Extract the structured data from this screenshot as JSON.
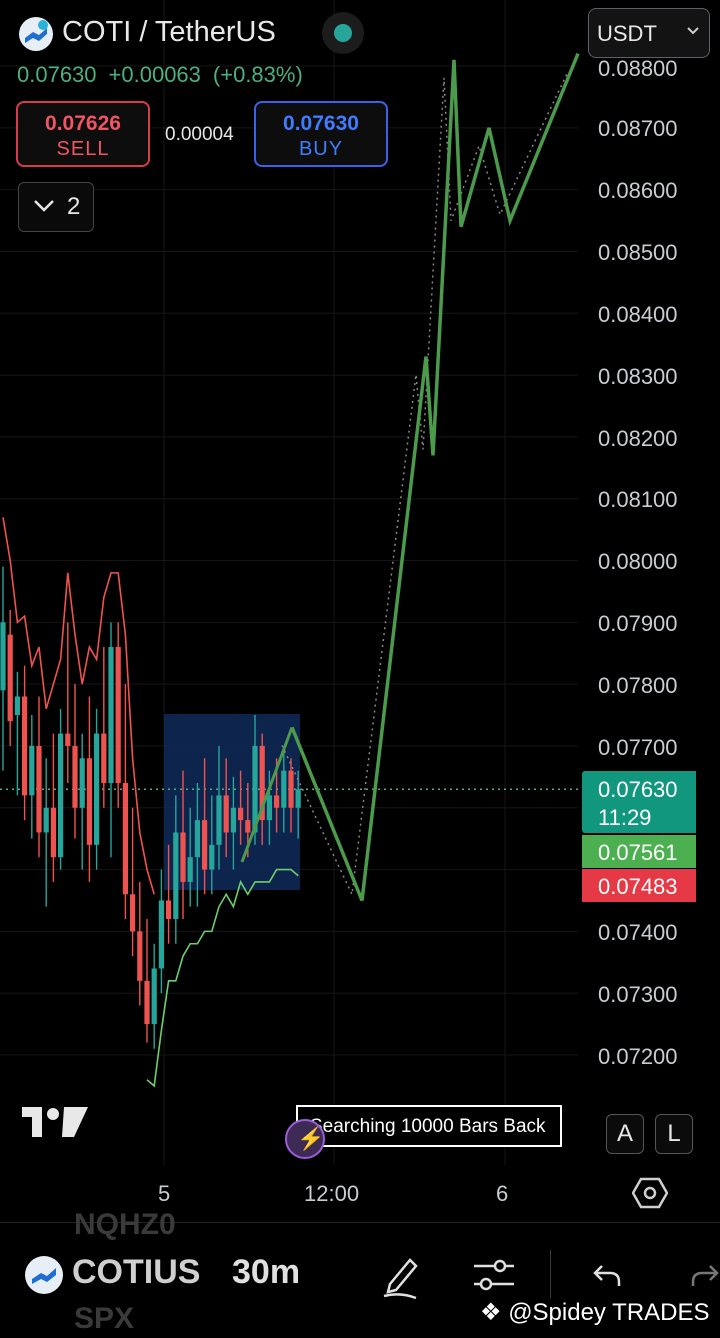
{
  "header": {
    "title": "COTI / TetherUS",
    "last_price": "0.07630",
    "change": "+0.00063",
    "change_pct": "(+0.83%)",
    "currency_selector": "USDT"
  },
  "trade": {
    "sell_price": "0.07626",
    "sell_label": "SELL",
    "spread": "0.00004",
    "buy_price": "0.07630",
    "buy_label": "BUY"
  },
  "indicators_toggle": {
    "count": "2"
  },
  "price_axis": {
    "labels": [
      "0.08800",
      "0.08700",
      "0.08600",
      "0.08500",
      "0.08400",
      "0.08300",
      "0.08200",
      "0.08100",
      "0.08000",
      "0.07900",
      "0.07800",
      "0.07700",
      "0.07400",
      "0.07300",
      "0.07200"
    ],
    "current_price_tag": "0.07630",
    "countdown": "11:29",
    "green_tag": "0.07561",
    "red_tag": "0.07483"
  },
  "time_axis": {
    "labels": [
      "5",
      "12:00",
      "6"
    ]
  },
  "overlay": {
    "search_message": "Searching 10000 Bars Back"
  },
  "scale_buttons": {
    "auto": "A",
    "log": "L"
  },
  "toolbar": {
    "symbol": "COTIUS",
    "interval": "30m",
    "ghost_top": "NQHZ0",
    "ghost_bottom": "SPX"
  },
  "watermark": "@Spidey TRADES",
  "colors": {
    "up": "#26a69a",
    "down": "#ef5350",
    "projection": "#4c9a4c",
    "sell": "#f05563",
    "buy": "#3f7cff"
  },
  "chart_data": {
    "type": "candlestick",
    "y_range": [
      0.0715,
      0.0882
    ],
    "grid": true,
    "candles": [
      {
        "o": 0.0779,
        "h": 0.0799,
        "l": 0.0766,
        "c": 0.079
      },
      {
        "o": 0.0788,
        "h": 0.0792,
        "l": 0.077,
        "c": 0.0774
      },
      {
        "o": 0.0775,
        "h": 0.0782,
        "l": 0.0762,
        "c": 0.0778
      },
      {
        "o": 0.0778,
        "h": 0.0783,
        "l": 0.0758,
        "c": 0.0762
      },
      {
        "o": 0.0762,
        "h": 0.0775,
        "l": 0.0755,
        "c": 0.077
      },
      {
        "o": 0.077,
        "h": 0.0778,
        "l": 0.0752,
        "c": 0.0756
      },
      {
        "o": 0.0756,
        "h": 0.0768,
        "l": 0.0744,
        "c": 0.076
      },
      {
        "o": 0.076,
        "h": 0.0772,
        "l": 0.0748,
        "c": 0.0752
      },
      {
        "o": 0.0752,
        "h": 0.0776,
        "l": 0.075,
        "c": 0.0772
      },
      {
        "o": 0.0772,
        "h": 0.079,
        "l": 0.0764,
        "c": 0.077
      },
      {
        "o": 0.077,
        "h": 0.078,
        "l": 0.0755,
        "c": 0.076
      },
      {
        "o": 0.076,
        "h": 0.0772,
        "l": 0.075,
        "c": 0.0768
      },
      {
        "o": 0.0768,
        "h": 0.0778,
        "l": 0.0748,
        "c": 0.0754
      },
      {
        "o": 0.0754,
        "h": 0.0776,
        "l": 0.075,
        "c": 0.0772
      },
      {
        "o": 0.0772,
        "h": 0.0786,
        "l": 0.076,
        "c": 0.0764
      },
      {
        "o": 0.0764,
        "h": 0.079,
        "l": 0.0752,
        "c": 0.0786
      },
      {
        "o": 0.0786,
        "h": 0.079,
        "l": 0.076,
        "c": 0.0764
      },
      {
        "o": 0.0764,
        "h": 0.078,
        "l": 0.0742,
        "c": 0.0746
      },
      {
        "o": 0.0746,
        "h": 0.076,
        "l": 0.0736,
        "c": 0.074
      },
      {
        "o": 0.074,
        "h": 0.0748,
        "l": 0.0728,
        "c": 0.0732
      },
      {
        "o": 0.0732,
        "h": 0.0742,
        "l": 0.0722,
        "c": 0.0725
      },
      {
        "o": 0.0725,
        "h": 0.0738,
        "l": 0.0721,
        "c": 0.0734
      },
      {
        "o": 0.0734,
        "h": 0.075,
        "l": 0.073,
        "c": 0.0745
      },
      {
        "o": 0.0745,
        "h": 0.0754,
        "l": 0.0738,
        "c": 0.0742
      },
      {
        "o": 0.0742,
        "h": 0.0762,
        "l": 0.0738,
        "c": 0.0756
      },
      {
        "o": 0.0756,
        "h": 0.0766,
        "l": 0.0742,
        "c": 0.0748
      },
      {
        "o": 0.0748,
        "h": 0.076,
        "l": 0.0744,
        "c": 0.0752
      },
      {
        "o": 0.0752,
        "h": 0.0764,
        "l": 0.0744,
        "c": 0.0758
      },
      {
        "o": 0.0758,
        "h": 0.0768,
        "l": 0.0746,
        "c": 0.075
      },
      {
        "o": 0.075,
        "h": 0.0762,
        "l": 0.0746,
        "c": 0.0754
      },
      {
        "o": 0.0754,
        "h": 0.077,
        "l": 0.075,
        "c": 0.0762
      },
      {
        "o": 0.0762,
        "h": 0.0768,
        "l": 0.0752,
        "c": 0.0756
      },
      {
        "o": 0.0756,
        "h": 0.0765,
        "l": 0.075,
        "c": 0.076
      },
      {
        "o": 0.076,
        "h": 0.0766,
        "l": 0.0754,
        "c": 0.0758
      },
      {
        "o": 0.0758,
        "h": 0.0764,
        "l": 0.0752,
        "c": 0.0756
      },
      {
        "o": 0.0756,
        "h": 0.0775,
        "l": 0.0754,
        "c": 0.077
      },
      {
        "o": 0.077,
        "h": 0.0772,
        "l": 0.0754,
        "c": 0.0758
      },
      {
        "o": 0.0758,
        "h": 0.0766,
        "l": 0.0754,
        "c": 0.0762
      },
      {
        "o": 0.0762,
        "h": 0.0768,
        "l": 0.0756,
        "c": 0.076
      },
      {
        "o": 0.076,
        "h": 0.077,
        "l": 0.0756,
        "c": 0.0766
      },
      {
        "o": 0.0766,
        "h": 0.0768,
        "l": 0.0756,
        "c": 0.076
      },
      {
        "o": 0.076,
        "h": 0.0766,
        "l": 0.0755,
        "c": 0.0763
      }
    ],
    "projection_path": [
      0.0773,
      0.0745,
      0.0833,
      0.0817,
      0.0881,
      0.0854,
      0.087,
      0.0855,
      0.0882
    ],
    "projection_times": [
      0,
      1,
      2,
      3,
      4,
      5,
      6,
      7,
      8
    ]
  }
}
